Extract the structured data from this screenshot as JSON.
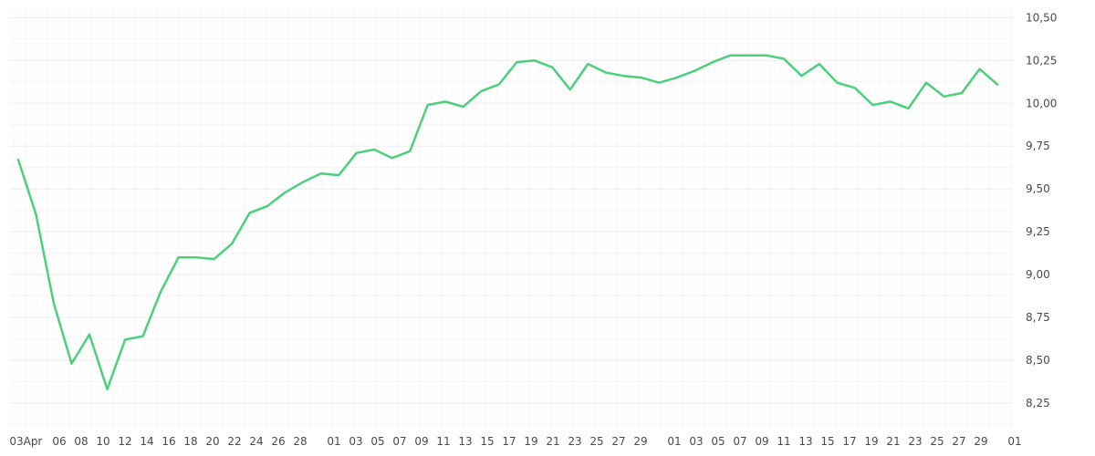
{
  "chart_data": {
    "type": "line",
    "title": "",
    "xlabel": "",
    "ylabel": "",
    "ylim": [
      8.1,
      10.55
    ],
    "y_ticks": [
      "10,50",
      "10,25",
      "10,00",
      "9,75",
      "9,50",
      "9,25",
      "9,00",
      "8,75",
      "8,50",
      "8,25"
    ],
    "y_tick_values": [
      10.5,
      10.25,
      10.0,
      9.75,
      9.5,
      9.25,
      9.0,
      8.75,
      8.5,
      8.25
    ],
    "x_ticks": [
      "03",
      "Apr",
      "06",
      "08",
      "10",
      "12",
      "14",
      "16",
      "18",
      "20",
      "22",
      "24",
      "26",
      "28",
      "01",
      "03",
      "05",
      "07",
      "09",
      "11",
      "13",
      "15",
      "17",
      "19",
      "21",
      "23",
      "25",
      "27",
      "29",
      "01",
      "03",
      "05",
      "07",
      "09",
      "11",
      "13",
      "15",
      "17",
      "19",
      "21",
      "23",
      "25",
      "27",
      "29",
      "01"
    ],
    "grid": true,
    "legend": "none",
    "series": [
      {
        "color": "#4cd07d",
        "values": [
          9.67,
          9.35,
          8.83,
          8.48,
          8.65,
          8.33,
          8.62,
          8.64,
          8.9,
          9.1,
          9.1,
          9.09,
          9.18,
          9.36,
          9.4,
          9.48,
          9.54,
          9.59,
          9.58,
          9.71,
          9.73,
          9.68,
          9.72,
          9.99,
          10.01,
          9.98,
          10.07,
          10.11,
          10.24,
          10.25,
          10.21,
          10.08,
          10.23,
          10.18,
          10.16,
          10.15,
          10.12,
          10.15,
          10.19,
          10.24,
          10.28,
          10.28,
          10.28,
          10.26,
          10.16,
          10.23,
          10.12,
          10.09,
          9.99,
          10.01,
          9.97,
          10.12,
          10.04,
          10.06,
          10.2,
          10.11
        ]
      }
    ]
  }
}
